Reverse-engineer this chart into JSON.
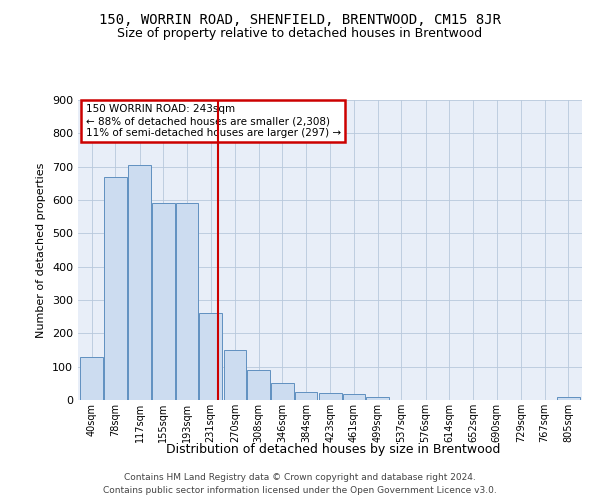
{
  "title": "150, WORRIN ROAD, SHENFIELD, BRENTWOOD, CM15 8JR",
  "subtitle": "Size of property relative to detached houses in Brentwood",
  "xlabel": "Distribution of detached houses by size in Brentwood",
  "ylabel": "Number of detached properties",
  "bar_labels": [
    "40sqm",
    "78sqm",
    "117sqm",
    "155sqm",
    "193sqm",
    "231sqm",
    "270sqm",
    "308sqm",
    "346sqm",
    "384sqm",
    "423sqm",
    "461sqm",
    "499sqm",
    "537sqm",
    "576sqm",
    "614sqm",
    "652sqm",
    "690sqm",
    "729sqm",
    "767sqm",
    "805sqm"
  ],
  "bar_centers": [
    40,
    78,
    117,
    155,
    193,
    231,
    270,
    308,
    346,
    384,
    423,
    461,
    499,
    537,
    576,
    614,
    652,
    690,
    729,
    767,
    805
  ],
  "bar_values": [
    130,
    670,
    705,
    590,
    590,
    260,
    150,
    90,
    50,
    25,
    20,
    18,
    10,
    0,
    0,
    0,
    0,
    0,
    0,
    0,
    8
  ],
  "bar_color": "#ccdcf0",
  "bar_edge_color": "#6090c0",
  "ylim": [
    0,
    900
  ],
  "yticks": [
    0,
    100,
    200,
    300,
    400,
    500,
    600,
    700,
    800,
    900
  ],
  "property_value": 243,
  "annotation_line1": "150 WORRIN ROAD: 243sqm",
  "annotation_line2": "← 88% of detached houses are smaller (2,308)",
  "annotation_line3": "11% of semi-detached houses are larger (297) →",
  "red_line_color": "#cc0000",
  "background_color": "#ffffff",
  "axes_bg_color": "#e8eef8",
  "grid_color": "#b8c8dc",
  "footer_line1": "Contains HM Land Registry data © Crown copyright and database right 2024.",
  "footer_line2": "Contains public sector information licensed under the Open Government Licence v3.0."
}
